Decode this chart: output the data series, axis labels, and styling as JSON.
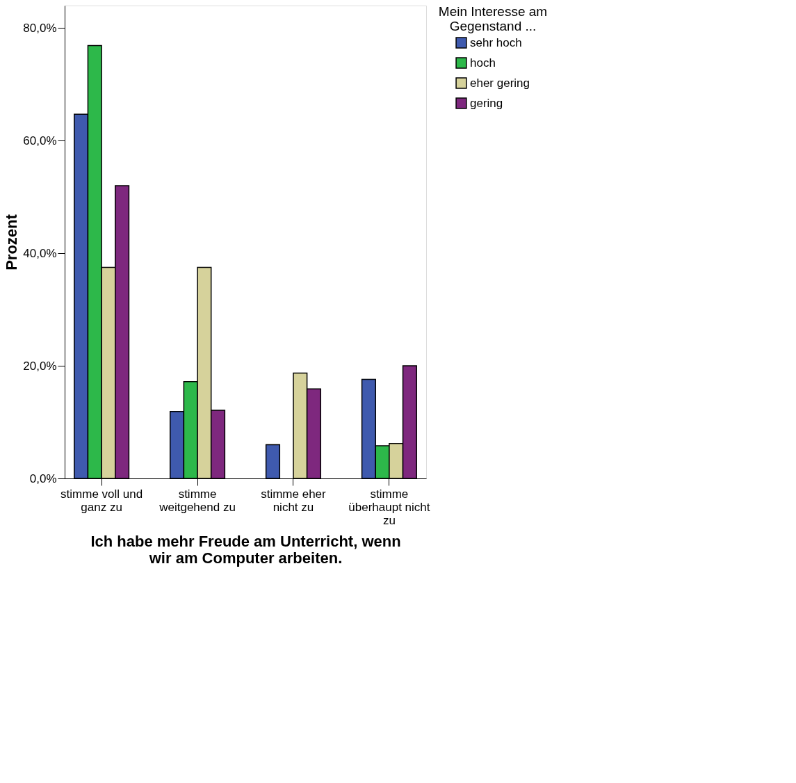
{
  "chart_data": {
    "type": "bar",
    "categories": [
      "stimme voll und ganz zu",
      "stimme weitgehend zu",
      "stimme eher nicht zu",
      "stimme überhaupt nicht zu"
    ],
    "series": [
      {
        "name": "sehr hoch",
        "color": "#3f5aae",
        "values": [
          64.7,
          11.9,
          6.0,
          17.6
        ]
      },
      {
        "name": "hoch",
        "color": "#2db84a",
        "values": [
          76.9,
          17.2,
          null,
          5.8
        ]
      },
      {
        "name": "eher gering",
        "color": "#d6d29b",
        "values": [
          37.5,
          37.5,
          18.7,
          6.2
        ]
      },
      {
        "name": "gering",
        "color": "#7e287e",
        "values": [
          52.0,
          12.1,
          15.9,
          20.0
        ]
      }
    ],
    "xlabel": "Ich habe mehr Freude am Unterricht, wenn wir am Computer arbeiten.",
    "ylabel": "Prozent",
    "legend_title": "Mein Interesse am Gegenstand ...",
    "ylim": [
      0,
      84
    ],
    "yticks": [
      {
        "value": 0,
        "label": "0,0%"
      },
      {
        "value": 20,
        "label": "20,0%"
      },
      {
        "value": 40,
        "label": "40,0%"
      },
      {
        "value": 60,
        "label": "60,0%"
      },
      {
        "value": 80,
        "label": "80,0%"
      }
    ],
    "grid": false,
    "legend": "right"
  }
}
